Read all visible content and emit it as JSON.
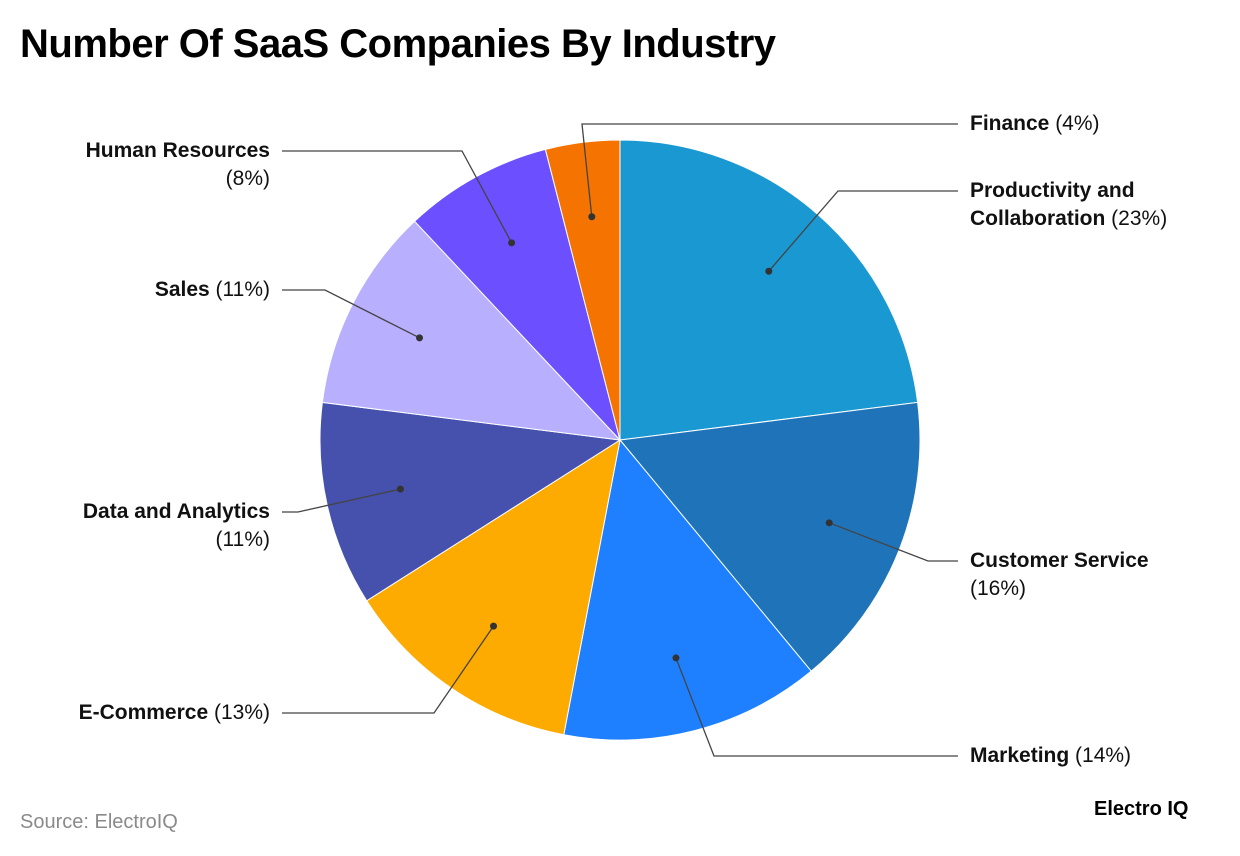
{
  "chart_data": {
    "type": "pie",
    "title": "Number Of SaaS Companies By Industry",
    "unit": "%",
    "slices": [
      {
        "label": "Productivity and Collaboration",
        "value": 23,
        "color": "#1a98d2"
      },
      {
        "label": "Customer Service",
        "value": 16,
        "color": "#1f74b9"
      },
      {
        "label": "Marketing",
        "value": 14,
        "color": "#1e80fe"
      },
      {
        "label": "E-Commerce",
        "value": 13,
        "color": "#fdab00"
      },
      {
        "label": "Data and Analytics",
        "value": 11,
        "color": "#4651ae"
      },
      {
        "label": "Sales",
        "value": 11,
        "color": "#b8b0fe"
      },
      {
        "label": "Human Resources",
        "value": 8,
        "color": "#6c4ffe"
      },
      {
        "label": "Finance",
        "value": 4,
        "color": "#f57300"
      }
    ],
    "start_angle": "top",
    "direction": "clockwise",
    "legend": "none",
    "data_labels": "outside with leader lines"
  },
  "source": "Source: ElectroIQ",
  "logo": "Electro IQ"
}
